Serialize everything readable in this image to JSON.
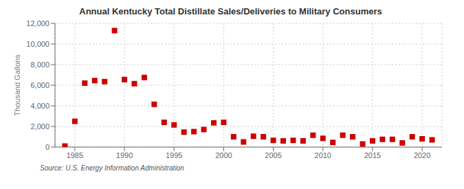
{
  "chart_data": {
    "type": "scatter",
    "title": "Annual Kentucky Total Distillate Sales/Deliveries to Military Consumers",
    "ylabel": "Thousand Gallons",
    "annotation": "Source: U.S. Energy Information Administration",
    "x": [
      1984,
      1985,
      1986,
      1987,
      1988,
      1989,
      1990,
      1991,
      1992,
      1993,
      1994,
      1995,
      1996,
      1997,
      1998,
      1999,
      2000,
      2001,
      2002,
      2003,
      2004,
      2005,
      2006,
      2007,
      2008,
      2009,
      2010,
      2011,
      2012,
      2013,
      2014,
      2015,
      2016,
      2017,
      2018,
      2019,
      2020,
      2021
    ],
    "values": [
      100,
      2500,
      6200,
      6450,
      6350,
      11300,
      6550,
      6150,
      6750,
      4150,
      2400,
      2150,
      1450,
      1500,
      1700,
      2350,
      2400,
      1000,
      500,
      1050,
      1000,
      650,
      600,
      650,
      600,
      1150,
      850,
      450,
      1150,
      1000,
      300,
      600,
      750,
      750,
      400,
      1000,
      800,
      700
    ],
    "color": "#cc0000",
    "marker": "square",
    "xlim": [
      1983,
      2022
    ],
    "xticks": [
      1985,
      1990,
      1995,
      2000,
      2005,
      2010,
      2015,
      2020
    ],
    "ylim": [
      0,
      12000
    ],
    "yticks": [
      0,
      {
        "value": 2000,
        "label": "2,000"
      },
      {
        "value": 4000,
        "label": "4,000"
      },
      {
        "value": 6000,
        "label": "6,000"
      },
      {
        "value": 8000,
        "label": "8,000"
      },
      {
        "value": 10000,
        "label": "10,000"
      },
      {
        "value": 12000,
        "label": "12,000"
      }
    ],
    "grid": true
  }
}
